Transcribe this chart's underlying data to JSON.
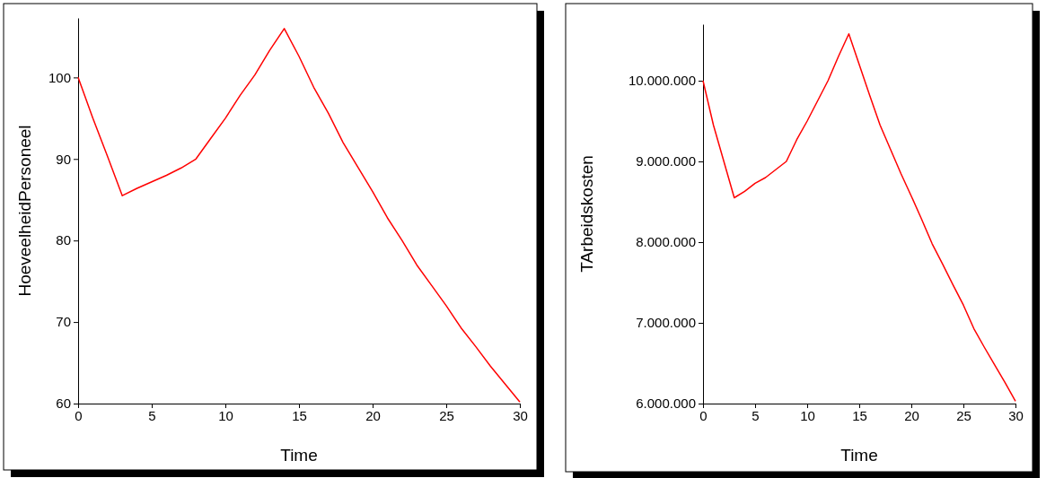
{
  "chart_data": [
    {
      "type": "line",
      "xlabel": "Time",
      "ylabel": "HoeveelheidPersoneel",
      "x": [
        0,
        1,
        2,
        3,
        4,
        5,
        6,
        7,
        8,
        9,
        10,
        11,
        12,
        13,
        14,
        15,
        16,
        17,
        18,
        19,
        20,
        21,
        22,
        23,
        24,
        25,
        26,
        27,
        28,
        29,
        30
      ],
      "series": [
        {
          "color": "#ff0000",
          "values": [
            100,
            95,
            90.3,
            85.5,
            86.4,
            87.2,
            88,
            88.9,
            90,
            92.5,
            95,
            97.8,
            100.3,
            103.3,
            106,
            102.6,
            98.8,
            95.6,
            92,
            89,
            86,
            82.8,
            80,
            77,
            74.5,
            72,
            69.3,
            67,
            64.6,
            62.4,
            60.2
          ]
        }
      ],
      "xlim": [
        0,
        30
      ],
      "xticks": [
        0,
        5,
        10,
        15,
        20,
        25,
        30
      ],
      "ylim": [
        60,
        107.3
      ],
      "yticks": [
        60,
        70,
        80,
        90,
        100
      ],
      "grid": false
    },
    {
      "type": "line",
      "xlabel": "Time",
      "ylabel": "TArbeidskosten",
      "x": [
        0,
        1,
        2,
        3,
        4,
        5,
        6,
        7,
        8,
        9,
        10,
        11,
        12,
        13,
        14,
        15,
        16,
        17,
        18,
        19,
        20,
        21,
        22,
        23,
        24,
        25,
        26,
        27,
        28,
        29,
        30
      ],
      "series": [
        {
          "color": "#ff0000",
          "values": [
            10000000,
            9450000,
            9000000,
            8550000,
            8630000,
            8730000,
            8800000,
            8900000,
            9000000,
            9270000,
            9500000,
            9750000,
            10000000,
            10300000,
            10580000,
            10200000,
            9820000,
            9450000,
            9150000,
            8850000,
            8570000,
            8280000,
            7980000,
            7730000,
            7470000,
            7220000,
            6930000,
            6700000,
            6480000,
            6260000,
            6030000
          ]
        }
      ],
      "xlim": [
        0,
        30
      ],
      "xticks": [
        0,
        5,
        10,
        15,
        20,
        25,
        30
      ],
      "ylim": [
        6000000,
        10700000
      ],
      "yticks": [
        {
          "value": 6000000,
          "label": "6.000.000"
        },
        {
          "value": 7000000,
          "label": "7.000.000"
        },
        {
          "value": 8000000,
          "label": "8.000.000"
        },
        {
          "value": 9000000,
          "label": "9.000.000"
        },
        {
          "value": 10000000,
          "label": "10.000.000"
        }
      ],
      "grid": false
    }
  ]
}
